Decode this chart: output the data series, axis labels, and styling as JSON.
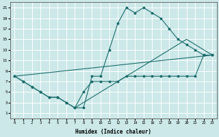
{
  "xlabel": "Humidex (Indice chaleur)",
  "background_color": "#cce8e8",
  "grid_color": "#ffffff",
  "line_color": "#1a6b6b",
  "xlim": [
    -0.5,
    23.5
  ],
  "ylim": [
    0,
    22
  ],
  "xticks": [
    0,
    1,
    2,
    3,
    4,
    5,
    6,
    7,
    8,
    9,
    10,
    11,
    12,
    13,
    14,
    15,
    16,
    17,
    18,
    19,
    20,
    21,
    22,
    23
  ],
  "yticks": [
    1,
    3,
    5,
    7,
    9,
    11,
    13,
    15,
    17,
    19,
    21
  ],
  "lines": [
    {
      "x": [
        0,
        1,
        2,
        3,
        4,
        5,
        6,
        7,
        8,
        9,
        10,
        11,
        12,
        13,
        14,
        15,
        16,
        17,
        18,
        19,
        20,
        21,
        22,
        23
      ],
      "y": [
        8,
        7,
        6,
        5,
        4,
        4,
        3,
        2,
        2,
        8,
        8,
        13,
        18,
        21,
        20,
        21,
        20,
        19,
        17,
        15,
        14,
        13,
        12,
        12
      ],
      "marker": true
    },
    {
      "x": [
        0,
        1,
        2,
        3,
        4,
        5,
        6,
        7,
        8,
        9,
        10,
        11,
        12,
        13,
        14,
        15,
        16,
        17,
        18,
        19,
        20,
        21,
        22,
        23
      ],
      "y": [
        8,
        7,
        6,
        5,
        4,
        4,
        3,
        2,
        5,
        7,
        7,
        7,
        7,
        8,
        8,
        8,
        8,
        8,
        8,
        8,
        8,
        8,
        12,
        12
      ],
      "marker": true
    },
    {
      "x": [
        0,
        23
      ],
      "y": [
        8,
        12
      ],
      "marker": false
    },
    {
      "x": [
        7,
        20,
        23
      ],
      "y": [
        2,
        15,
        12
      ],
      "marker": false
    }
  ]
}
